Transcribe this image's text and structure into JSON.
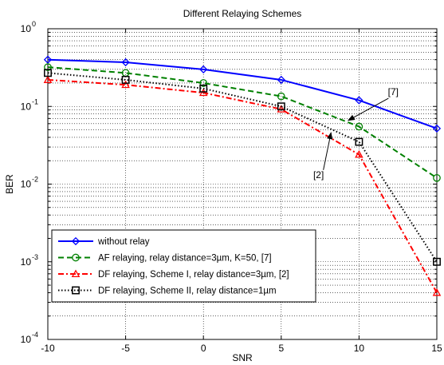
{
  "chart_data": {
    "type": "line",
    "title": "Different Relaying Schemes",
    "xlabel": "SNR",
    "ylabel": "BER",
    "xlim": [
      -10,
      15
    ],
    "ylim": [
      0.0001,
      1
    ],
    "yscale": "log",
    "grid": true,
    "xticks": [
      -10,
      -5,
      0,
      5,
      10,
      15
    ],
    "xtick_labels": [
      "-10",
      "-5",
      "0",
      "5",
      "10",
      "15"
    ],
    "yticks": [
      0.0001,
      0.001,
      0.01,
      0.1,
      1
    ],
    "ytick_labels": [
      {
        "base": "10",
        "exp": "-4"
      },
      {
        "base": "10",
        "exp": "-3"
      },
      {
        "base": "10",
        "exp": "-2"
      },
      {
        "base": "10",
        "exp": "-1"
      },
      {
        "base": "10",
        "exp": "0"
      }
    ],
    "legend_position": "bottom-left",
    "series": [
      {
        "name": "without relay",
        "color": "#0000ff",
        "dash": "solid",
        "marker": "diamond",
        "x": [
          -10,
          -5,
          0,
          5,
          10,
          15
        ],
        "y": [
          0.4,
          0.37,
          0.3,
          0.22,
          0.12,
          0.052
        ]
      },
      {
        "name": "AF relaying, relay distance=3µm, K=50, [7]",
        "color": "#008000",
        "dash": "dash",
        "marker": "circle",
        "x": [
          -10,
          -5,
          0,
          5,
          10,
          15
        ],
        "y": [
          0.32,
          0.27,
          0.2,
          0.135,
          0.055,
          0.012
        ]
      },
      {
        "name": "DF relaying, Scheme I, relay distance=3µm, [2]",
        "color": "#ff0000",
        "dash": "dashdot",
        "marker": "triangle",
        "x": [
          -10,
          -5,
          0,
          5,
          10,
          15
        ],
        "y": [
          0.22,
          0.19,
          0.15,
          0.092,
          0.024,
          0.0004
        ]
      },
      {
        "name": "DF relaying, Scheme II, relay distance=1µm",
        "color": "#000000",
        "dash": "dot",
        "marker": "square",
        "x": [
          -10,
          -5,
          0,
          5,
          10,
          15
        ],
        "y": [
          0.27,
          0.22,
          0.17,
          0.1,
          0.035,
          0.001
        ]
      }
    ],
    "annotations": [
      {
        "text": "[7]",
        "text_x": 12.2,
        "text_y": 0.14,
        "arrow_to_x": 9.3,
        "arrow_to_y": 0.066
      },
      {
        "text": "[2]",
        "text_x": 7.4,
        "text_y": 0.012,
        "arrow_to_x": 8.2,
        "arrow_to_y": 0.046
      }
    ]
  }
}
